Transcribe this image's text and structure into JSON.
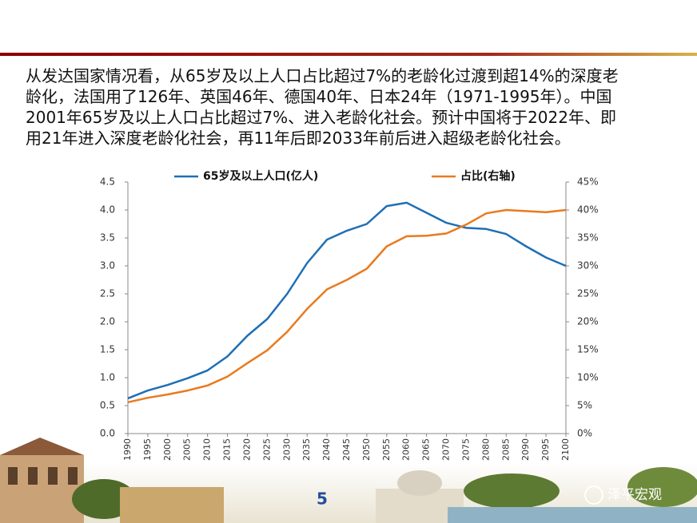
{
  "paragraph": [
    "从发达国家情况看，从65岁及以上人口占比超过7%的老龄化过渡到超14%的深度老",
    "龄化，法国用了126年、英国46年、德国40年、日本24年（1971-1995年）。中国",
    "2001年65岁及以上人口占比超过7%、进入老龄化社会。预计中国将于2022年、即",
    "用21年进入深度老龄化社会，再11年后即2033年前后进入超级老龄化社会。"
  ],
  "chart_data": {
    "type": "line",
    "x": [
      1990,
      1995,
      2000,
      2005,
      2010,
      2015,
      2020,
      2025,
      2030,
      2035,
      2040,
      2045,
      2050,
      2055,
      2060,
      2065,
      2070,
      2075,
      2080,
      2085,
      2090,
      2095,
      2100
    ],
    "series": [
      {
        "name": "65岁及以上人口(亿人)",
        "color": "#1f6fb4",
        "values": [
          0.63,
          0.77,
          0.87,
          0.99,
          1.13,
          1.38,
          1.75,
          2.05,
          2.5,
          3.05,
          3.47,
          3.63,
          3.75,
          4.07,
          4.13,
          3.95,
          3.77,
          3.68,
          3.66,
          3.57,
          3.35,
          3.15,
          3.0
        ]
      },
      {
        "name": "占比(右轴)",
        "color": "#e87b1e",
        "axis": "y2",
        "values": [
          5.6,
          6.4,
          7.0,
          7.7,
          8.6,
          10.2,
          12.6,
          14.9,
          18.2,
          22.3,
          25.8,
          27.5,
          29.5,
          33.5,
          35.3,
          35.4,
          35.8,
          37.4,
          39.4,
          40.0,
          39.8,
          39.6,
          40.0
        ]
      }
    ],
    "xlim": [
      1990,
      2100
    ],
    "xticks": [
      1990,
      1995,
      2000,
      2005,
      2010,
      2015,
      2020,
      2025,
      2030,
      2035,
      2040,
      2045,
      2050,
      2055,
      2060,
      2065,
      2070,
      2075,
      2080,
      2085,
      2090,
      2095,
      2100
    ],
    "ylim": [
      0,
      4.5
    ],
    "yticks": [
      {
        "value": 0,
        "label": "0.0"
      },
      0.5,
      {
        "value": 1,
        "label": "1.0"
      },
      1.5,
      {
        "value": 2,
        "label": "2.0"
      },
      2.5,
      {
        "value": 3,
        "label": "3.0"
      },
      3.5,
      {
        "value": 4,
        "label": "4.0"
      },
      4.5
    ],
    "y2lim": [
      0,
      45
    ],
    "y2ticks": [
      {
        "value": 0,
        "label": "0%"
      },
      {
        "value": 5,
        "label": "5%"
      },
      {
        "value": 10,
        "label": "10%"
      },
      {
        "value": 15,
        "label": "15%"
      },
      {
        "value": 20,
        "label": "20%"
      },
      {
        "value": 25,
        "label": "25%"
      },
      {
        "value": 30,
        "label": "30%"
      },
      {
        "value": 35,
        "label": "35%"
      },
      {
        "value": 40,
        "label": "40%"
      },
      {
        "value": 45,
        "label": "45%"
      }
    ],
    "legend": "top"
  },
  "footer": {
    "page_number": "5",
    "watermark": "泽平宏观"
  }
}
